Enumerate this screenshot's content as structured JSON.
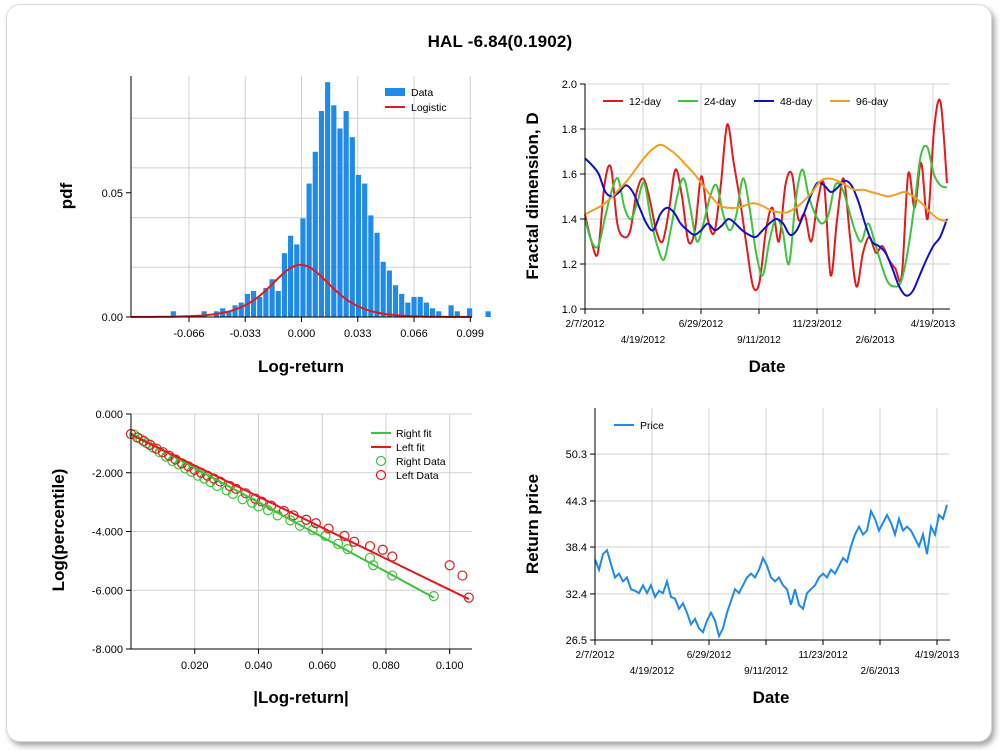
{
  "title": "HAL -6.84(0.1902)",
  "colors": {
    "blue_bar": "#1f8ae8",
    "red": "#e31a1c",
    "green": "#3cc43c",
    "navy": "#1010c8",
    "orange": "#f0a020",
    "grid": "#d0d0d0"
  },
  "chart_data": [
    {
      "id": "histogram",
      "type": "bar",
      "xlabel": "Log-return",
      "ylabel": "pdf",
      "xticks": [
        "-0.066",
        "-0.033",
        "0.000",
        "0.033",
        "0.066",
        "0.099"
      ],
      "yticks": [
        "0.00",
        "0.05"
      ],
      "xlim": [
        -0.1,
        0.1
      ],
      "ylim": [
        0,
        0.097
      ],
      "legend": [
        "Data",
        "Logistic"
      ],
      "bin_start": -0.0987,
      "bin_width": 0.00362,
      "bin_values": [
        0,
        0,
        0,
        0,
        0,
        0,
        0.0023,
        0,
        0,
        0,
        0,
        0.0023,
        0,
        0.0023,
        0.0035,
        0.0023,
        0.0047,
        0.0058,
        0.0093,
        0.0105,
        0.0081,
        0.0117,
        0.0152,
        0.0105,
        0.0257,
        0.0327,
        0.0292,
        0.0397,
        0.0537,
        0.0665,
        0.0829,
        0.0945,
        0.0852,
        0.0759,
        0.0829,
        0.0724,
        0.0572,
        0.0537,
        0.0409,
        0.0339,
        0.0222,
        0.0187,
        0.0128,
        0.0093,
        0.0058,
        0.0081,
        0.0081,
        0.0058,
        0.0035,
        0.0023,
        0,
        0.0047,
        0.0023,
        0,
        0.0035,
        0,
        0,
        0.0023
      ],
      "logistic_mu": -0.0005,
      "logistic_s": 0.0118
    },
    {
      "id": "fractal",
      "type": "line",
      "xlabel": "Date",
      "ylabel": "Fractal dimension, D",
      "xticks_top": [
        "2/7/2012",
        "6/29/2012",
        "11/23/2012",
        "4/19/2013"
      ],
      "xticks_bottom": [
        "4/19/2012",
        "9/11/2012",
        "2/6/2013"
      ],
      "yticks": [
        "1.0",
        "1.2",
        "1.4",
        "1.6",
        "1.8",
        "2.0"
      ],
      "ylim": [
        1.0,
        2.0
      ],
      "series": [
        {
          "name": "12-day",
          "color": "#e31a1c",
          "y": [
            1.42,
            1.3,
            1.25,
            1.55,
            1.63,
            1.38,
            1.32,
            1.35,
            1.52,
            1.58,
            1.49,
            1.35,
            1.3,
            1.44,
            1.62,
            1.5,
            1.3,
            1.35,
            1.59,
            1.4,
            1.34,
            1.55,
            1.82,
            1.65,
            1.48,
            1.28,
            1.1,
            1.12,
            1.35,
            1.45,
            1.3,
            1.55,
            1.6,
            1.4,
            1.42,
            1.3,
            1.48,
            1.55,
            1.15,
            1.4,
            1.58,
            1.32,
            1.1,
            1.25,
            1.32,
            1.25,
            1.28,
            1.22,
            1.18,
            1.15,
            1.6,
            1.45,
            1.65,
            1.4,
            1.8,
            1.92,
            1.56
          ]
        },
        {
          "name": "24-day",
          "color": "#3cc43c",
          "y": [
            1.4,
            1.3,
            1.28,
            1.4,
            1.52,
            1.58,
            1.45,
            1.4,
            1.48,
            1.56,
            1.4,
            1.28,
            1.22,
            1.35,
            1.5,
            1.58,
            1.45,
            1.3,
            1.38,
            1.5,
            1.55,
            1.42,
            1.35,
            1.42,
            1.58,
            1.45,
            1.25,
            1.15,
            1.3,
            1.4,
            1.35,
            1.2,
            1.48,
            1.62,
            1.5,
            1.42,
            1.38,
            1.42,
            1.55,
            1.54,
            1.45,
            1.35,
            1.3,
            1.38,
            1.3,
            1.2,
            1.12,
            1.1,
            1.12,
            1.25,
            1.45,
            1.68,
            1.72,
            1.6,
            1.55,
            1.54
          ]
        },
        {
          "name": "48-day",
          "color": "#1010c8",
          "y": [
            1.67,
            1.64,
            1.6,
            1.52,
            1.5,
            1.52,
            1.55,
            1.52,
            1.45,
            1.38,
            1.35,
            1.42,
            1.45,
            1.43,
            1.38,
            1.35,
            1.33,
            1.35,
            1.38,
            1.35,
            1.37,
            1.4,
            1.38,
            1.35,
            1.33,
            1.32,
            1.35,
            1.38,
            1.4,
            1.38,
            1.33,
            1.35,
            1.42,
            1.5,
            1.56,
            1.55,
            1.52,
            1.54,
            1.57,
            1.55,
            1.48,
            1.38,
            1.3,
            1.28,
            1.25,
            1.18,
            1.1,
            1.06,
            1.08,
            1.15,
            1.22,
            1.28,
            1.32,
            1.4
          ]
        },
        {
          "name": "96-day",
          "color": "#f0a020",
          "y": [
            1.42,
            1.44,
            1.46,
            1.49,
            1.53,
            1.57,
            1.62,
            1.67,
            1.71,
            1.73,
            1.71,
            1.68,
            1.64,
            1.6,
            1.55,
            1.5,
            1.46,
            1.45,
            1.45,
            1.46,
            1.47,
            1.46,
            1.44,
            1.43,
            1.43,
            1.45,
            1.48,
            1.52,
            1.57,
            1.58,
            1.57,
            1.55,
            1.53,
            1.53,
            1.52,
            1.51,
            1.5,
            1.51,
            1.52,
            1.5,
            1.47,
            1.43,
            1.4,
            1.39
          ]
        }
      ]
    },
    {
      "id": "loglog",
      "type": "scatter",
      "xlabel": "|Log-return|",
      "ylabel": "Log(percentile)",
      "xticks": [
        "0.020",
        "0.040",
        "0.060",
        "0.080",
        "0.100"
      ],
      "yticks": [
        "0.000",
        "-2.000",
        "-4.000",
        "-6.000",
        "-8.000"
      ],
      "xlim": [
        0,
        0.107
      ],
      "ylim": [
        -8,
        0
      ],
      "legend": [
        "Right fit",
        "Left fit",
        "Right Data",
        "Left Data"
      ],
      "right_fit": [
        [
          0,
          -0.65
        ],
        [
          0.095,
          -6.25
        ]
      ],
      "left_fit": [
        [
          0,
          -0.7
        ],
        [
          0.106,
          -6.3
        ]
      ],
      "right_data": [
        [
          0.001,
          -0.7
        ],
        [
          0.003,
          -0.85
        ],
        [
          0.005,
          -1.0
        ],
        [
          0.007,
          -1.15
        ],
        [
          0.009,
          -1.3
        ],
        [
          0.011,
          -1.45
        ],
        [
          0.013,
          -1.6
        ],
        [
          0.015,
          -1.72
        ],
        [
          0.017,
          -1.85
        ],
        [
          0.019,
          -1.97
        ],
        [
          0.021,
          -2.1
        ],
        [
          0.023,
          -2.2
        ],
        [
          0.025,
          -2.32
        ],
        [
          0.027,
          -2.45
        ],
        [
          0.03,
          -2.6
        ],
        [
          0.032,
          -2.72
        ],
        [
          0.035,
          -2.9
        ],
        [
          0.038,
          -3.02
        ],
        [
          0.04,
          -3.15
        ],
        [
          0.043,
          -3.28
        ],
        [
          0.046,
          -3.45
        ],
        [
          0.05,
          -3.62
        ],
        [
          0.053,
          -3.8
        ],
        [
          0.057,
          -3.95
        ],
        [
          0.061,
          -4.15
        ],
        [
          0.065,
          -4.42
        ],
        [
          0.068,
          -4.6
        ],
        [
          0.075,
          -4.9
        ],
        [
          0.076,
          -5.15
        ],
        [
          0.082,
          -5.5
        ],
        [
          0.095,
          -6.2
        ]
      ],
      "left_data": [
        [
          0.0,
          -0.68
        ],
        [
          0.002,
          -0.8
        ],
        [
          0.004,
          -0.92
        ],
        [
          0.006,
          -1.05
        ],
        [
          0.008,
          -1.18
        ],
        [
          0.01,
          -1.3
        ],
        [
          0.012,
          -1.42
        ],
        [
          0.014,
          -1.55
        ],
        [
          0.016,
          -1.68
        ],
        [
          0.018,
          -1.78
        ],
        [
          0.02,
          -1.9
        ],
        [
          0.022,
          -2.0
        ],
        [
          0.024,
          -2.1
        ],
        [
          0.026,
          -2.2
        ],
        [
          0.028,
          -2.3
        ],
        [
          0.031,
          -2.45
        ],
        [
          0.033,
          -2.55
        ],
        [
          0.036,
          -2.7
        ],
        [
          0.039,
          -2.88
        ],
        [
          0.041,
          -2.98
        ],
        [
          0.044,
          -3.12
        ],
        [
          0.048,
          -3.3
        ],
        [
          0.051,
          -3.45
        ],
        [
          0.055,
          -3.6
        ],
        [
          0.058,
          -3.72
        ],
        [
          0.062,
          -3.9
        ],
        [
          0.067,
          -4.15
        ],
        [
          0.07,
          -4.35
        ],
        [
          0.075,
          -4.5
        ],
        [
          0.079,
          -4.62
        ],
        [
          0.082,
          -4.85
        ],
        [
          0.1,
          -5.15
        ],
        [
          0.104,
          -5.5
        ],
        [
          0.106,
          -6.25
        ]
      ]
    },
    {
      "id": "price",
      "type": "line",
      "xlabel": "Date",
      "ylabel": "Return price",
      "xticks_top": [
        "2/7/2012",
        "6/29/2012",
        "11/23/2012",
        "4/19/2013"
      ],
      "xticks_bottom": [
        "4/19/2012",
        "9/11/2012",
        "2/6/2013"
      ],
      "yticks": [
        "26.5",
        "32.4",
        "38.4",
        "44.3",
        "50.3"
      ],
      "ylim": [
        26.5,
        56.2
      ],
      "legend": [
        "Price"
      ],
      "series": [
        {
          "name": "Price",
          "color": "#1f8ae8",
          "y": [
            36.8,
            35.5,
            37.5,
            38.0,
            36.2,
            34.5,
            35.0,
            34.0,
            34.5,
            33.0,
            32.8,
            32.5,
            33.5,
            32.5,
            33.5,
            32.0,
            32.8,
            32.5,
            34.0,
            32.0,
            31.8,
            30.5,
            31.2,
            30.0,
            28.5,
            29.2,
            28.0,
            27.5,
            29.0,
            30.0,
            29.0,
            27.0,
            28.0,
            30.0,
            31.5,
            33.0,
            32.5,
            33.5,
            34.5,
            35.0,
            34.5,
            35.5,
            37.0,
            36.0,
            34.5,
            34.0,
            34.5,
            33.5,
            33.0,
            31.0,
            33.0,
            31.0,
            30.5,
            32.5,
            33.0,
            33.5,
            34.5,
            35.0,
            34.5,
            35.5,
            35.0,
            36.0,
            37.0,
            36.5,
            38.5,
            40.0,
            41.0,
            40.0,
            40.5,
            43.0,
            42.0,
            40.5,
            41.5,
            42.5,
            41.5,
            40.0,
            42.0,
            40.5,
            41.0,
            40.5,
            39.5,
            38.5,
            40.0,
            37.5,
            41.0,
            40.0,
            42.5,
            42.0,
            43.8
          ]
        }
      ]
    }
  ]
}
